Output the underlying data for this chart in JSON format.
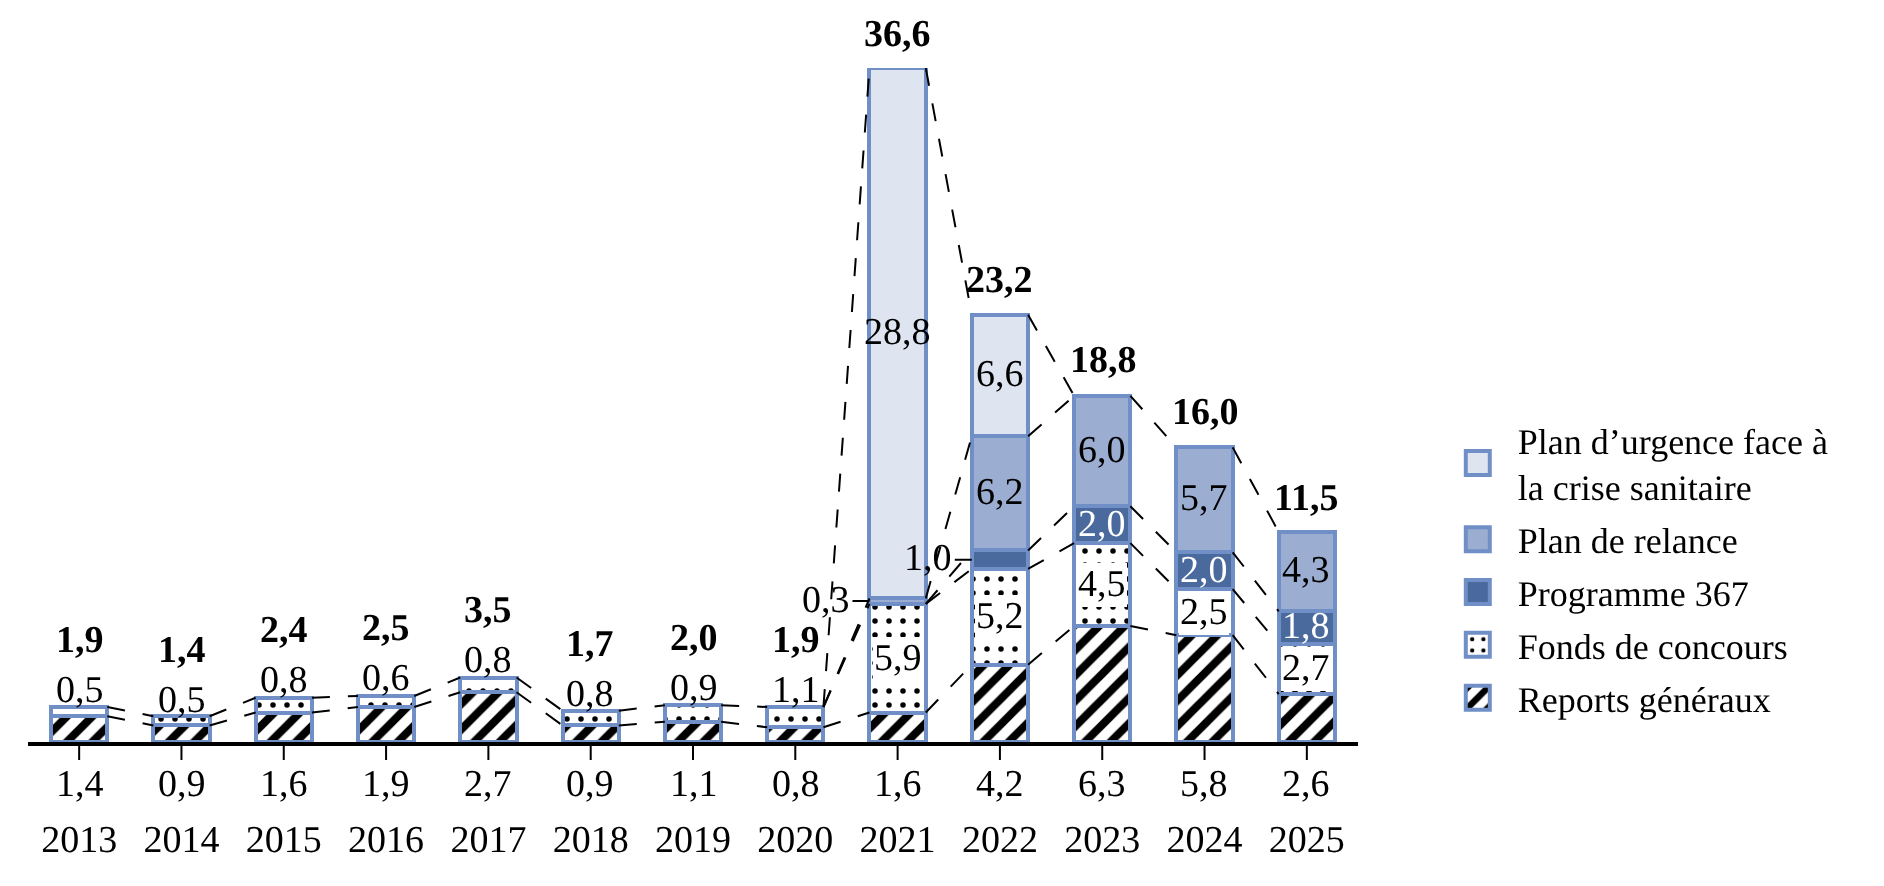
{
  "chart_data": {
    "type": "bar",
    "stacked": true,
    "legend": "right",
    "line_style": "dashed",
    "tick_labels": "x",
    "categories": [
      "2013",
      "2014",
      "2015",
      "2016",
      "2017",
      "2018",
      "2019",
      "2020",
      "2021",
      "2022",
      "2023",
      "2024",
      "2025"
    ],
    "series": [
      {
        "name": "Reports généraux",
        "color": "#6f8fc6",
        "values": [
          1.4,
          0.9,
          1.6,
          1.9,
          2.7,
          0.9,
          1.1,
          0.8,
          1.6,
          4.2,
          6.3,
          5.8,
          2.6
        ],
        "value_labels": [
          "1,4",
          "0,9",
          "1,6",
          "1,9",
          "2,7",
          "0,9",
          "1,1",
          "0,8",
          "1,6",
          "4,2",
          "6,3",
          "5,8",
          "2,6"
        ]
      },
      {
        "name": "Fonds de concours",
        "color": "#6f8fc6",
        "values": [
          0.5,
          0.5,
          0.8,
          0.6,
          0.8,
          0.8,
          0.9,
          1.1,
          5.9,
          5.2,
          4.5,
          2.5,
          2.7
        ],
        "value_labels": [
          "0,5",
          "0,5",
          "0,8",
          "0,6",
          "0,8",
          "0,8",
          "0,9",
          "1,1",
          "5,9",
          "5,2",
          "4,5",
          "2,5",
          "2,7"
        ]
      },
      {
        "name": "Programme 367",
        "color": "#4a6a9e",
        "values": [
          null,
          null,
          null,
          null,
          null,
          null,
          null,
          null,
          null,
          1.0,
          2.0,
          2.0,
          1.8
        ],
        "value_labels": [
          null,
          null,
          null,
          null,
          null,
          null,
          null,
          null,
          null,
          "1,0",
          "2,0",
          "2,0",
          "1,8"
        ]
      },
      {
        "name": "Plan de relance",
        "color": "#9badd0",
        "values": [
          null,
          null,
          null,
          null,
          null,
          null,
          null,
          null,
          0.3,
          6.2,
          6.0,
          5.7,
          4.3
        ],
        "value_labels": [
          null,
          null,
          null,
          null,
          null,
          null,
          null,
          null,
          "0,3",
          "6,2",
          "6,0",
          "5,7",
          "4,3"
        ]
      },
      {
        "name": "Plan d’urgence face à la crise sanitaire",
        "color": "#dfe5f0",
        "values": [
          null,
          null,
          null,
          null,
          null,
          null,
          null,
          null,
          28.8,
          6.6,
          null,
          null,
          null
        ],
        "value_labels": [
          null,
          null,
          null,
          null,
          null,
          null,
          null,
          null,
          "28,8",
          "6,6",
          null,
          null,
          null
        ]
      }
    ],
    "totals": [
      "1,9",
      "1,4",
      "2,4",
      "2,5",
      "3,5",
      "1,7",
      "2,0",
      "1,9",
      "36,6",
      "23,2",
      "18,8",
      "16,0",
      "11,5"
    ]
  }
}
